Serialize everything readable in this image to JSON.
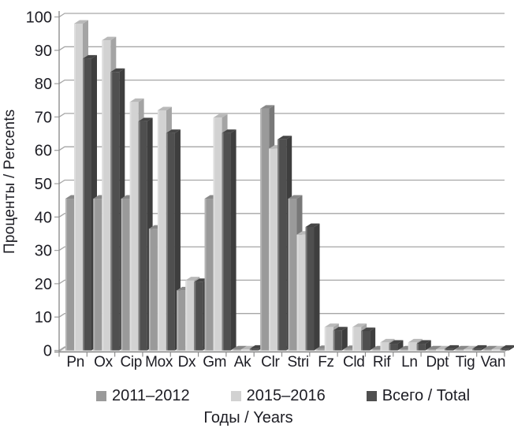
{
  "chart_data": {
    "type": "bar",
    "style": "3d-clustered-column",
    "title": "",
    "categories": [
      "Pn",
      "Ox",
      "Cip",
      "Mox",
      "Dx",
      "Gm",
      "Ak",
      "Clr",
      "Stri",
      "Fz",
      "Cld",
      "Rif",
      "Ln",
      "Dpt",
      "Tig",
      "Van"
    ],
    "series": [
      {
        "name": "2011–2012",
        "color": "#9a9a9a",
        "values": [
          45.5,
          45.5,
          45.5,
          36.5,
          18.0,
          45.5,
          0.3,
          72.5,
          45.5,
          0.4,
          0.4,
          0.3,
          0.3,
          0.3,
          0.3,
          0.3
        ]
      },
      {
        "name": "2015–2016",
        "color": "#d2d2d2",
        "values": [
          98.0,
          93.0,
          74.5,
          72.0,
          21.0,
          69.8,
          0.3,
          60.5,
          34.7,
          7.0,
          7.0,
          2.4,
          2.4,
          0.3,
          0.3,
          0.3
        ]
      },
      {
        "name": "Всего / Total",
        "color": "#4f4f4f",
        "values": [
          87.5,
          83.5,
          68.7,
          65.2,
          20.5,
          65.2,
          0.5,
          63.3,
          37.0,
          6.0,
          5.8,
          2.0,
          2.0,
          0.5,
          0.5,
          0.5
        ]
      }
    ],
    "xlabel": "Годы / Years",
    "ylabel": "Проценты / Percents",
    "ylim": [
      0,
      100
    ],
    "ytick_step": 10,
    "grid": true,
    "legend_position": "bottom",
    "colors": {
      "gridline": "#a6a6a6",
      "axis": "#8f8f8f",
      "floor": "#f2f2f2",
      "text": "#1d1d24"
    }
  }
}
